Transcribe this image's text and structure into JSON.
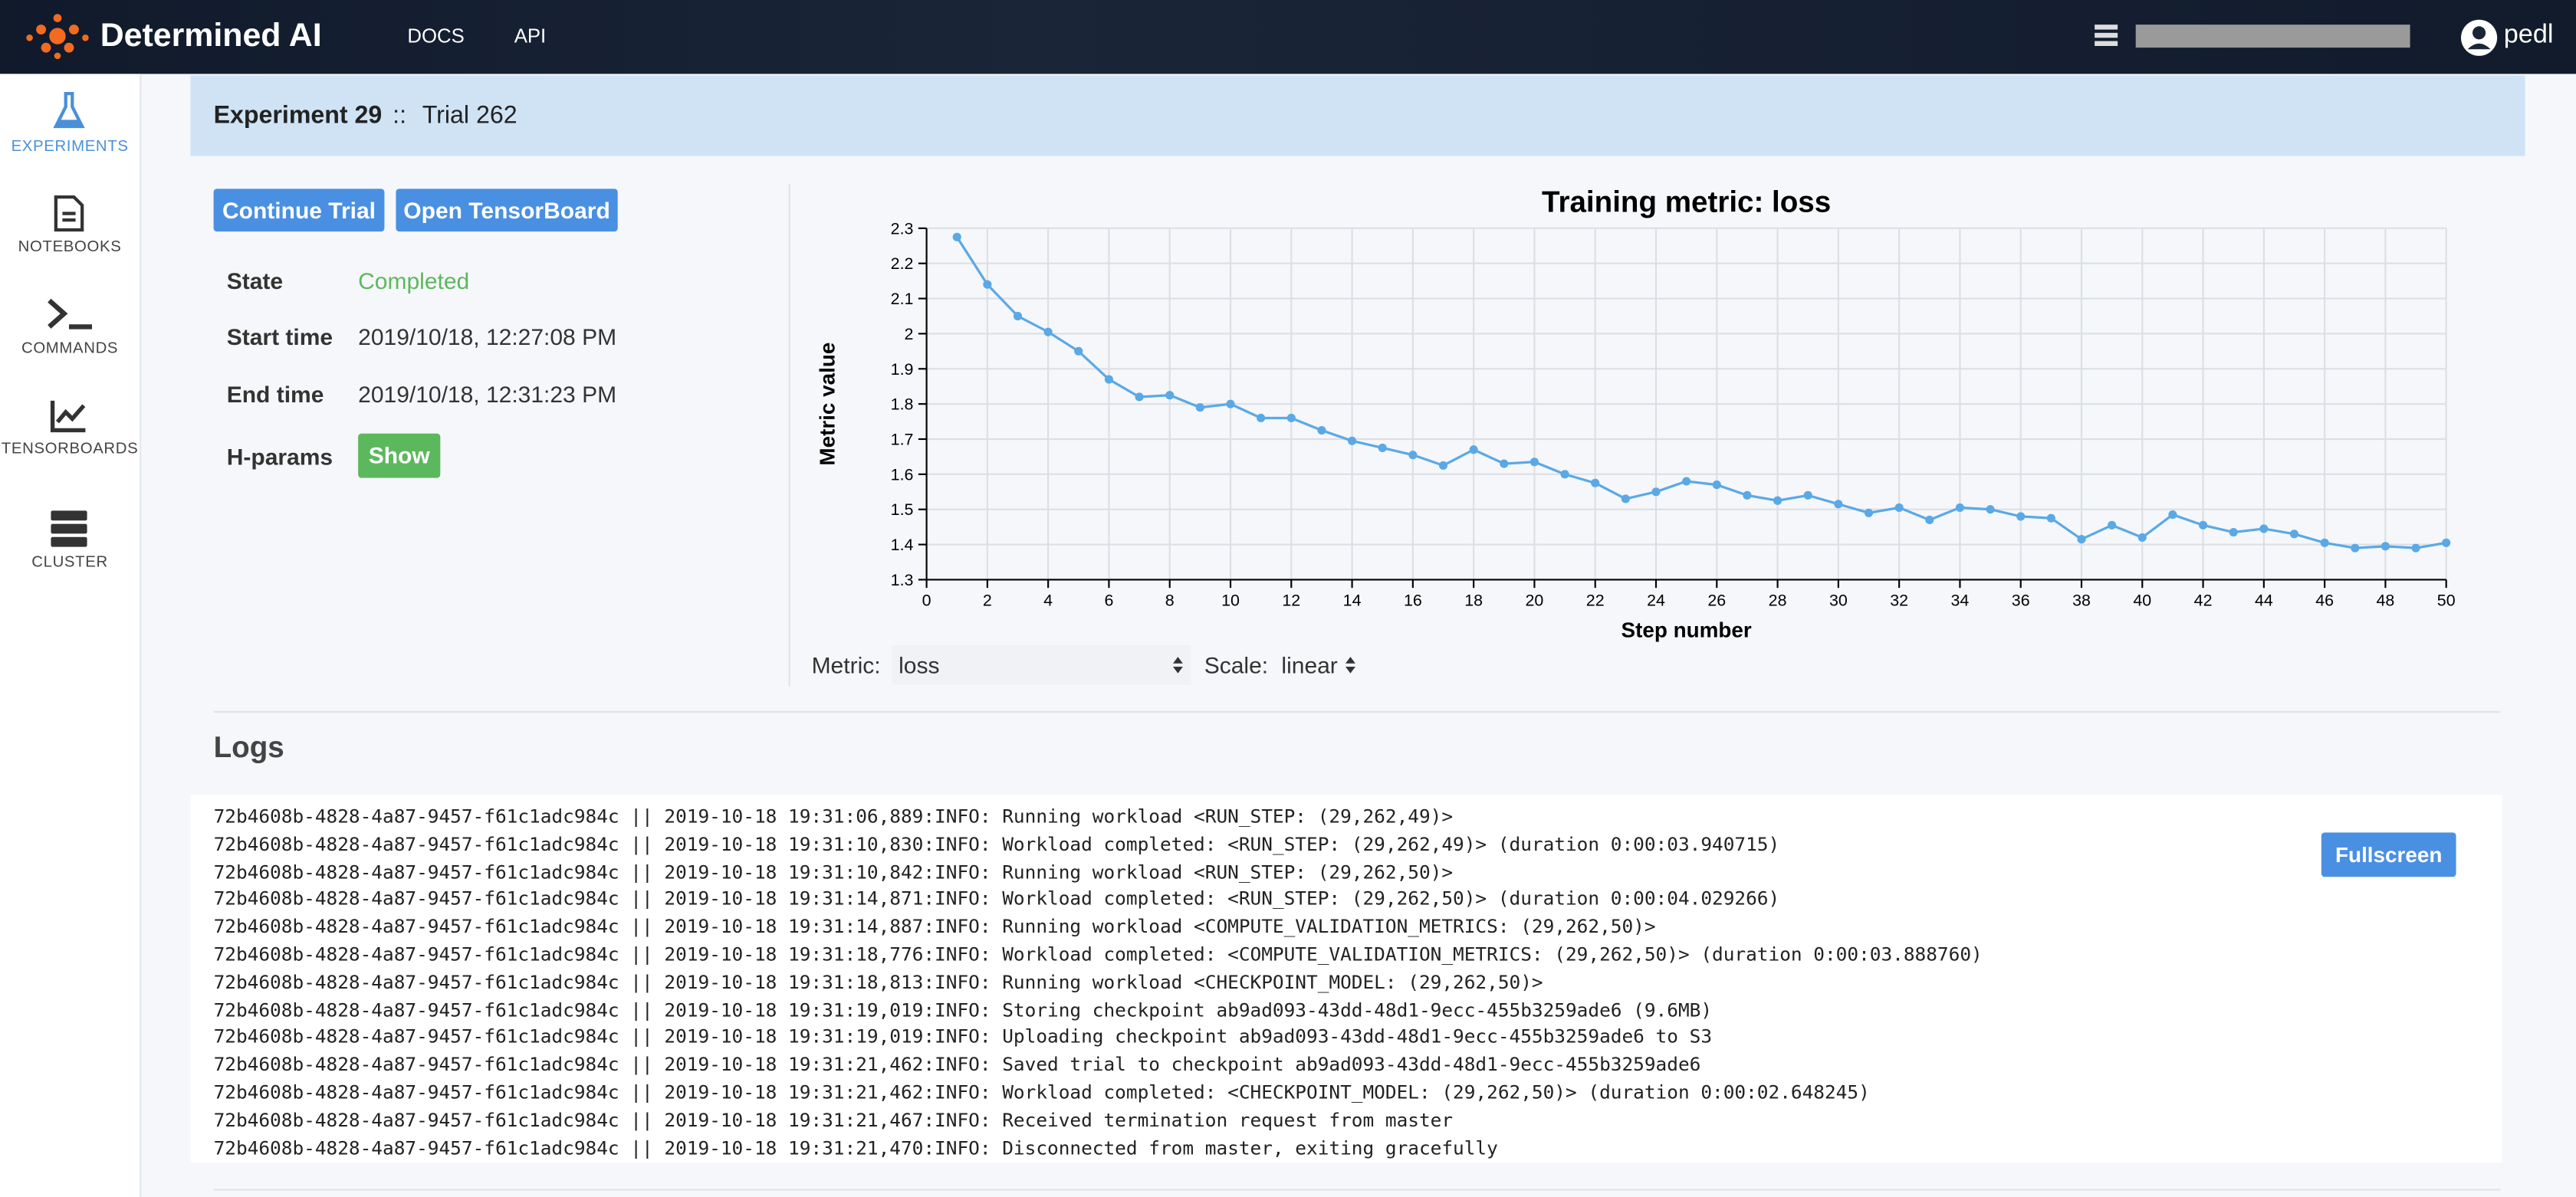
{
  "header": {
    "brand": "Determined AI",
    "docs": "DOCS",
    "api": "API",
    "user": "pedl"
  },
  "sidebar": {
    "items": [
      "EXPERIMENTS",
      "NOTEBOOKS",
      "COMMANDS",
      "TENSORBOARDS",
      "CLUSTER"
    ]
  },
  "breadcrumb": {
    "experiment": "Experiment 29",
    "separator": "::",
    "trial": "Trial 262"
  },
  "actions": [
    "Continue Trial",
    "Open TensorBoard"
  ],
  "info": {
    "rows": [
      [
        "State",
        "Completed"
      ],
      [
        "Start time",
        "2019/10/18, 12:27:08 PM"
      ],
      [
        "End time",
        "2019/10/18, 12:31:23 PM"
      ],
      [
        "H-params",
        "Show"
      ]
    ]
  },
  "chart_data": {
    "type": "line",
    "title": "Training metric: loss",
    "x_label": "Step number",
    "y_label": "Metric value",
    "color": "#5aa9e6",
    "grid": true,
    "x": [
      1,
      2,
      3,
      4,
      5,
      6,
      7,
      8,
      9,
      10,
      11,
      12,
      13,
      14,
      15,
      16,
      17,
      18,
      19,
      20,
      21,
      22,
      23,
      24,
      25,
      26,
      27,
      28,
      29,
      30,
      31,
      32,
      33,
      34,
      35,
      36,
      37,
      38,
      39,
      40,
      41,
      42,
      43,
      44,
      45,
      46,
      47,
      48,
      49,
      50
    ],
    "values": [
      2.275,
      2.14,
      2.05,
      2.005,
      1.95,
      1.87,
      1.82,
      1.825,
      1.79,
      1.8,
      1.76,
      1.76,
      1.725,
      1.695,
      1.675,
      1.655,
      1.625,
      1.67,
      1.63,
      1.635,
      1.6,
      1.575,
      1.53,
      1.55,
      1.58,
      1.57,
      1.54,
      1.525,
      1.54,
      1.515,
      1.49,
      1.505,
      1.47,
      1.505,
      1.5,
      1.48,
      1.475,
      1.415,
      1.455,
      1.42,
      1.485,
      1.455,
      1.435,
      1.445,
      1.43,
      1.405,
      1.39,
      1.395,
      1.39,
      1.405
    ],
    "xlim": [
      0,
      50
    ],
    "xticks": [
      0,
      2,
      4,
      6,
      8,
      10,
      12,
      14,
      16,
      18,
      20,
      22,
      24,
      26,
      28,
      30,
      32,
      34,
      36,
      38,
      40,
      42,
      44,
      46,
      48,
      50
    ],
    "ylim": [
      1.3,
      2.3
    ],
    "yticks": [
      1.3,
      1.4,
      1.5,
      1.6,
      1.7,
      1.8,
      1.9,
      2,
      2.1,
      2.2,
      2.3
    ]
  },
  "controls": {
    "metric_label": "Metric:",
    "metric": "loss",
    "scale_label": "Scale:",
    "scale": "linear"
  },
  "logs": {
    "title": "Logs",
    "button": "Fullscreen",
    "lines": [
      "72b4608b-4828-4a87-9457-f61c1adc984c || 2019-10-18 19:31:06,889:INFO: Running workload <RUN_STEP: (29,262,49)>",
      "72b4608b-4828-4a87-9457-f61c1adc984c || 2019-10-18 19:31:10,830:INFO: Workload completed: <RUN_STEP: (29,262,49)> (duration 0:00:03.940715)",
      "72b4608b-4828-4a87-9457-f61c1adc984c || 2019-10-18 19:31:10,842:INFO: Running workload <RUN_STEP: (29,262,50)>",
      "72b4608b-4828-4a87-9457-f61c1adc984c || 2019-10-18 19:31:14,871:INFO: Workload completed: <RUN_STEP: (29,262,50)> (duration 0:00:04.029266)",
      "72b4608b-4828-4a87-9457-f61c1adc984c || 2019-10-18 19:31:14,887:INFO: Running workload <COMPUTE_VALIDATION_METRICS: (29,262,50)>",
      "72b4608b-4828-4a87-9457-f61c1adc984c || 2019-10-18 19:31:18,776:INFO: Workload completed: <COMPUTE_VALIDATION_METRICS: (29,262,50)> (duration 0:00:03.888760)",
      "72b4608b-4828-4a87-9457-f61c1adc984c || 2019-10-18 19:31:18,813:INFO: Running workload <CHECKPOINT_MODEL: (29,262,50)>",
      "72b4608b-4828-4a87-9457-f61c1adc984c || 2019-10-18 19:31:19,019:INFO: Storing checkpoint ab9ad093-43dd-48d1-9ecc-455b3259ade6 (9.6MB)",
      "72b4608b-4828-4a87-9457-f61c1adc984c || 2019-10-18 19:31:19,019:INFO: Uploading checkpoint ab9ad093-43dd-48d1-9ecc-455b3259ade6 to S3",
      "72b4608b-4828-4a87-9457-f61c1adc984c || 2019-10-18 19:31:21,462:INFO: Saved trial to checkpoint ab9ad093-43dd-48d1-9ecc-455b3259ade6",
      "72b4608b-4828-4a87-9457-f61c1adc984c || 2019-10-18 19:31:21,462:INFO: Workload completed: <CHECKPOINT_MODEL: (29,262,50)> (duration 0:00:02.648245)",
      "72b4608b-4828-4a87-9457-f61c1adc984c || 2019-10-18 19:31:21,467:INFO: Received termination request from master",
      "72b4608b-4828-4a87-9457-f61c1adc984c || 2019-10-18 19:31:21,470:INFO: Disconnected from master, exiting gracefully"
    ]
  }
}
